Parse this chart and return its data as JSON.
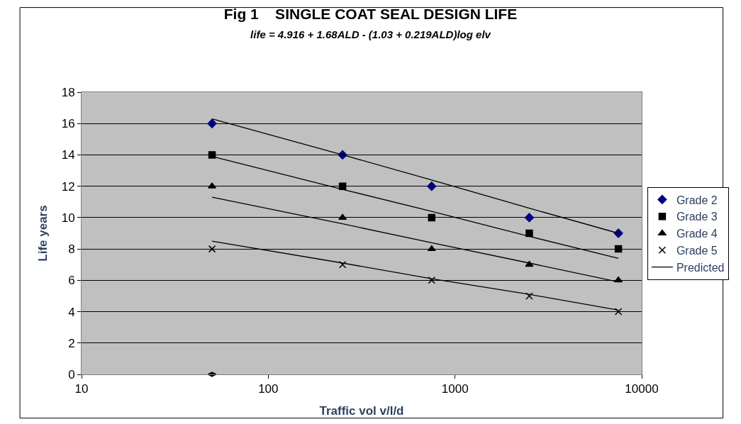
{
  "chart_data": {
    "type": "scatter",
    "title": "Fig 1    SINGLE COAT SEAL DESIGN LIFE",
    "subtitle": "life = 4.916 + 1.68ALD - (1.03 + 0.219ALD)log elv",
    "xlabel": "Traffic vol v/l/d",
    "ylabel": "Life years",
    "x": [
      50,
      250,
      750,
      2500,
      7500
    ],
    "series": [
      {
        "name": "Grade 2",
        "color": "#000080",
        "marker": "diamond",
        "values": [
          16,
          14,
          12,
          10,
          9
        ]
      },
      {
        "name": "Grade 3",
        "color": "#000000",
        "marker": "square",
        "values": [
          14,
          12,
          10,
          9,
          8
        ]
      },
      {
        "name": "Grade 4",
        "color": "#000000",
        "marker": "triangle",
        "values": [
          12,
          10,
          8,
          7,
          6
        ]
      },
      {
        "name": "Grade 5",
        "color": "#000000",
        "marker": "cross",
        "values": [
          8,
          7,
          6,
          5,
          4
        ]
      },
      {
        "name": "Predicted",
        "type": "line",
        "color": "#000000",
        "marker": "none",
        "line_style": "solid",
        "values": [
          16.3,
          14.0,
          12.4,
          10.6,
          9.0
        ]
      },
      {
        "type": "line",
        "color": "#000000",
        "marker": "none",
        "line_style": "solid",
        "values": [
          13.9,
          11.8,
          10.4,
          8.8,
          7.4
        ]
      },
      {
        "type": "line",
        "color": "#000000",
        "marker": "none",
        "line_style": "solid",
        "values": [
          11.3,
          9.6,
          8.4,
          7.1,
          5.9
        ]
      },
      {
        "type": "line",
        "color": "#000000",
        "marker": "none",
        "line_style": "solid",
        "values": [
          8.5,
          7.1,
          6.1,
          5.1,
          4.1
        ]
      },
      {
        "type": "scatter",
        "color": "#000000",
        "values": [
          0,
          null,
          null,
          null,
          null
        ]
      }
    ],
    "log": "x",
    "xlim": [
      10,
      10000
    ],
    "xticks": [
      10,
      100,
      1000,
      10000
    ],
    "ylim": [
      0,
      18
    ],
    "yticks": [
      0,
      2,
      4,
      6,
      8,
      10,
      12,
      14,
      16,
      18
    ],
    "grid": "y",
    "legend": "right"
  }
}
